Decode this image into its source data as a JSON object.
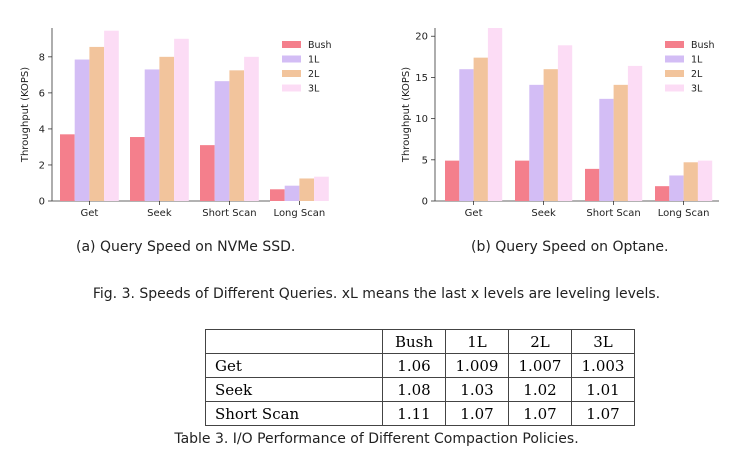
{
  "chart_data": [
    {
      "type": "bar",
      "categories": [
        "Get",
        "Seek",
        "Short Scan",
        "Long Scan"
      ],
      "ylabel": "Throughput (KOPS)",
      "ylim": [
        0,
        9.6
      ],
      "yticks": [
        "0",
        "2",
        "4",
        "6",
        "8"
      ],
      "legend": "top-right",
      "grid": false,
      "series": [
        {
          "name": "Bush",
          "color": "#f47f8c",
          "values": [
            3.7,
            3.55,
            3.1,
            0.65
          ]
        },
        {
          "name": "1L",
          "color": "#d3bdf5",
          "values": [
            7.85,
            7.3,
            6.65,
            0.85
          ]
        },
        {
          "name": "2L",
          "color": "#f2c49c",
          "values": [
            8.55,
            8.0,
            7.25,
            1.25
          ]
        },
        {
          "name": "3L",
          "color": "#fcdcf5",
          "values": [
            9.45,
            9.0,
            8.0,
            1.35
          ]
        }
      ]
    },
    {
      "type": "bar",
      "categories": [
        "Get",
        "Seek",
        "Short Scan",
        "Long Scan"
      ],
      "ylabel": "Throughput (KOPS)",
      "ylim": [
        0,
        21
      ],
      "yticks": [
        "0",
        "5",
        "10",
        "15",
        "20"
      ],
      "legend": "top-right",
      "grid": false,
      "series": [
        {
          "name": "Bush",
          "color": "#f47f8c",
          "values": [
            4.9,
            4.9,
            3.9,
            1.8
          ]
        },
        {
          "name": "1L",
          "color": "#d3bdf5",
          "values": [
            16.0,
            14.1,
            12.4,
            3.1
          ]
        },
        {
          "name": "2L",
          "color": "#f2c49c",
          "values": [
            17.4,
            16.0,
            14.1,
            4.7
          ]
        },
        {
          "name": "3L",
          "color": "#fcdcf5",
          "values": [
            21.0,
            18.9,
            16.4,
            4.9
          ]
        }
      ]
    }
  ],
  "captions": {
    "a": "(a) Query Speed on NVMe SSD.",
    "b": "(b) Query Speed on Optane.",
    "figure": "Fig. 3.  Speeds of Different Queries. xL means the last x levels are leveling levels.",
    "table": "Table 3.  I/O Performance of Different Compaction Policies."
  },
  "table": {
    "columns": [
      "",
      "Bush",
      "1L",
      "2L",
      "3L"
    ],
    "rows": [
      [
        "Get",
        "1.06",
        "1.009",
        "1.007",
        "1.003"
      ],
      [
        "Seek",
        "1.08",
        "1.03",
        "1.02",
        "1.01"
      ],
      [
        "Short Scan",
        "1.11",
        "1.07",
        "1.07",
        "1.07"
      ]
    ]
  }
}
